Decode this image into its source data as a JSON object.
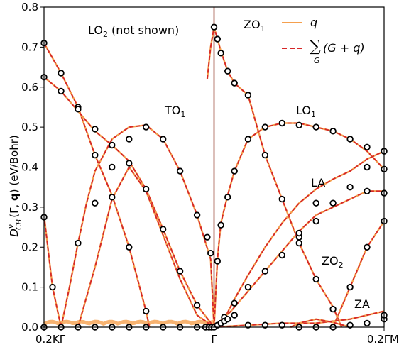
{
  "chart_data": {
    "type": "line",
    "ylabel_parts": {
      "main": "D",
      "sup": "ν",
      "sub": "CB",
      "rest_a": "(Γ, ",
      "rest_b": "q",
      "rest_c": ") (eV/Bohr)"
    },
    "ylim": [
      0.0,
      0.8
    ],
    "yticks": [
      "0.0",
      "0.1",
      "0.2",
      "0.3",
      "0.4",
      "0.5",
      "0.6",
      "0.7",
      "0.8"
    ],
    "xticks": [
      "0.2ΚΓ",
      "Γ",
      "0.2ΓΜ"
    ],
    "xlim": [
      -0.2,
      0.2
    ],
    "legend": {
      "placement": "top-right",
      "q_label": "q",
      "sum_label": "(G + q)",
      "sum_symbol": "∑",
      "sum_sub": "G"
    },
    "colors": {
      "q": "#f5a04e",
      "sum": "#d62728",
      "marker_edge": "#000000",
      "gamma_line": "#8b2a1a"
    },
    "annotations": {
      "lo2": {
        "main": "LO",
        "sub": "2",
        "rest": " (not shown)"
      },
      "zo1": {
        "main": "ZO",
        "sub": "1"
      },
      "to1": {
        "main": "TO",
        "sub": "1"
      },
      "lo1": {
        "main": "LO",
        "sub": "1"
      },
      "la": "LA",
      "zo2": {
        "main": "ZO",
        "sub": "2"
      },
      "za": "ZA"
    },
    "series": [
      {
        "key": "TO1_left",
        "points": [
          [
            -0.2,
            0.28
          ],
          [
            -0.19,
            0.1
          ],
          [
            -0.18,
            0.0
          ]
        ]
      },
      {
        "key": "TO1_arc",
        "points": [
          [
            -0.18,
            0.0
          ],
          [
            -0.17,
            0.1
          ],
          [
            -0.16,
            0.21
          ],
          [
            -0.15,
            0.31
          ],
          [
            -0.14,
            0.39
          ],
          [
            -0.12,
            0.47
          ],
          [
            -0.1,
            0.5
          ],
          [
            -0.08,
            0.505
          ],
          [
            -0.06,
            0.47
          ],
          [
            -0.04,
            0.39
          ],
          [
            -0.02,
            0.28
          ],
          [
            -0.004,
            0.17
          ],
          [
            0.0,
            0.0
          ]
        ]
      },
      {
        "key": "LO1_left",
        "points": [
          [
            -0.2,
            0.71
          ],
          [
            -0.18,
            0.635
          ],
          [
            -0.16,
            0.55
          ],
          [
            -0.14,
            0.43
          ],
          [
            -0.12,
            0.33
          ],
          [
            -0.1,
            0.2
          ],
          [
            -0.08,
            0.04
          ],
          [
            -0.076,
            0.0
          ]
        ]
      },
      {
        "key": "upper_left",
        "points": [
          [
            -0.2,
            0.625
          ],
          [
            -0.18,
            0.59
          ],
          [
            -0.16,
            0.54
          ],
          [
            -0.14,
            0.49
          ],
          [
            -0.12,
            0.455
          ],
          [
            -0.1,
            0.415
          ],
          [
            -0.08,
            0.345
          ],
          [
            -0.06,
            0.245
          ],
          [
            -0.04,
            0.14
          ],
          [
            -0.02,
            0.055
          ],
          [
            0.0,
            0.0
          ]
        ]
      },
      {
        "key": "mid_left",
        "points": [
          [
            -0.16,
            0.0
          ],
          [
            -0.14,
            0.15
          ],
          [
            -0.12,
            0.32
          ],
          [
            -0.1,
            0.4
          ],
          [
            -0.08,
            0.34
          ],
          [
            -0.06,
            0.23
          ],
          [
            -0.04,
            0.12
          ],
          [
            -0.02,
            0.03
          ],
          [
            0.0,
            0.0
          ]
        ]
      },
      {
        "key": "ZO1",
        "points": [
          [
            -0.008,
            0.62
          ],
          [
            -0.004,
            0.7
          ],
          [
            0.0,
            0.75
          ],
          [
            0.004,
            0.72
          ],
          [
            0.008,
            0.69
          ],
          [
            0.016,
            0.64
          ],
          [
            0.024,
            0.61
          ],
          [
            0.04,
            0.58
          ],
          [
            0.06,
            0.43
          ],
          [
            0.08,
            0.32
          ],
          [
            0.1,
            0.21
          ],
          [
            0.12,
            0.12
          ],
          [
            0.14,
            0.05
          ],
          [
            0.15,
            0.0
          ]
        ]
      },
      {
        "key": "LO1_right",
        "points": [
          [
            0.0,
            0.0
          ],
          [
            0.004,
            0.17
          ],
          [
            0.008,
            0.26
          ],
          [
            0.016,
            0.33
          ],
          [
            0.024,
            0.39
          ],
          [
            0.04,
            0.47
          ],
          [
            0.06,
            0.5
          ],
          [
            0.08,
            0.51
          ],
          [
            0.1,
            0.51
          ],
          [
            0.12,
            0.5
          ],
          [
            0.14,
            0.49
          ],
          [
            0.16,
            0.47
          ],
          [
            0.18,
            0.44
          ],
          [
            0.2,
            0.395
          ]
        ]
      },
      {
        "key": "LA",
        "points": [
          [
            0.0,
            0.0
          ],
          [
            0.012,
            0.02
          ],
          [
            0.024,
            0.07
          ],
          [
            0.04,
            0.13
          ],
          [
            0.06,
            0.2
          ],
          [
            0.08,
            0.26
          ],
          [
            0.1,
            0.31
          ],
          [
            0.12,
            0.345
          ],
          [
            0.14,
            0.37
          ],
          [
            0.16,
            0.39
          ],
          [
            0.18,
            0.42
          ],
          [
            0.2,
            0.44
          ]
        ]
      },
      {
        "key": "ZO2",
        "points": [
          [
            0.14,
            0.0
          ],
          [
            0.16,
            0.1
          ],
          [
            0.18,
            0.2
          ],
          [
            0.2,
            0.265
          ]
        ]
      },
      {
        "key": "TA",
        "points": [
          [
            0.0,
            0.0
          ],
          [
            0.02,
            0.04
          ],
          [
            0.04,
            0.09
          ],
          [
            0.06,
            0.14
          ],
          [
            0.08,
            0.19
          ],
          [
            0.1,
            0.24
          ],
          [
            0.12,
            0.28
          ],
          [
            0.14,
            0.3
          ],
          [
            0.16,
            0.32
          ],
          [
            0.18,
            0.34
          ],
          [
            0.2,
            0.34
          ]
        ]
      },
      {
        "key": "ZA",
        "points": [
          [
            0.0,
            0.0
          ],
          [
            0.04,
            0.005
          ],
          [
            0.08,
            0.01
          ],
          [
            0.12,
            0.01
          ],
          [
            0.16,
            0.02
          ],
          [
            0.18,
            0.03
          ],
          [
            0.2,
            0.04
          ]
        ]
      },
      {
        "key": "ZA_valley",
        "points": [
          [
            0.09,
            0.0
          ],
          [
            0.1,
            0.01
          ],
          [
            0.12,
            0.02
          ],
          [
            0.14,
            0.012
          ],
          [
            0.16,
            0.0
          ]
        ]
      }
    ],
    "markers": [
      [
        -0.2,
        0.71
      ],
      [
        -0.18,
        0.635
      ],
      [
        -0.16,
        0.55
      ],
      [
        -0.14,
        0.43
      ],
      [
        -0.12,
        0.325
      ],
      [
        -0.1,
        0.2
      ],
      [
        -0.08,
        0.04
      ],
      [
        -0.2,
        0.625
      ],
      [
        -0.18,
        0.59
      ],
      [
        -0.16,
        0.545
      ],
      [
        -0.14,
        0.495
      ],
      [
        -0.12,
        0.455
      ],
      [
        -0.1,
        0.41
      ],
      [
        -0.08,
        0.345
      ],
      [
        -0.06,
        0.245
      ],
      [
        -0.04,
        0.14
      ],
      [
        -0.02,
        0.055
      ],
      [
        -0.2,
        0.275
      ],
      [
        -0.19,
        0.1
      ],
      [
        -0.16,
        0.21
      ],
      [
        -0.14,
        0.31
      ],
      [
        -0.12,
        0.4
      ],
      [
        -0.1,
        0.47
      ],
      [
        -0.08,
        0.5
      ],
      [
        -0.06,
        0.47
      ],
      [
        -0.04,
        0.39
      ],
      [
        -0.02,
        0.28
      ],
      [
        -0.004,
        0.185
      ],
      [
        -0.008,
        0.225
      ],
      [
        -0.2,
        0.0
      ],
      [
        -0.18,
        0.0
      ],
      [
        -0.16,
        0.0
      ],
      [
        -0.14,
        0.0
      ],
      [
        -0.12,
        0.0
      ],
      [
        -0.1,
        0.0
      ],
      [
        -0.08,
        0.0
      ],
      [
        -0.06,
        0.0
      ],
      [
        -0.04,
        0.0
      ],
      [
        -0.02,
        0.0
      ],
      [
        -0.01,
        0.0
      ],
      [
        -0.006,
        0.0
      ],
      [
        -0.003,
        0.0
      ],
      [
        0.0,
        0.0
      ],
      [
        0.0,
        0.75
      ],
      [
        0.004,
        0.72
      ],
      [
        0.008,
        0.685
      ],
      [
        0.016,
        0.64
      ],
      [
        0.024,
        0.61
      ],
      [
        0.04,
        0.58
      ],
      [
        0.06,
        0.43
      ],
      [
        0.08,
        0.32
      ],
      [
        0.1,
        0.21
      ],
      [
        0.12,
        0.12
      ],
      [
        0.14,
        0.045
      ],
      [
        0.004,
        0.165
      ],
      [
        0.008,
        0.255
      ],
      [
        0.016,
        0.325
      ],
      [
        0.024,
        0.39
      ],
      [
        0.04,
        0.47
      ],
      [
        0.06,
        0.5
      ],
      [
        0.08,
        0.51
      ],
      [
        0.1,
        0.505
      ],
      [
        0.12,
        0.5
      ],
      [
        0.14,
        0.49
      ],
      [
        0.16,
        0.47
      ],
      [
        0.18,
        0.45
      ],
      [
        0.2,
        0.44
      ],
      [
        0.2,
        0.395
      ],
      [
        0.012,
        0.025
      ],
      [
        0.024,
        0.06
      ],
      [
        0.04,
        0.1
      ],
      [
        0.06,
        0.14
      ],
      [
        0.08,
        0.18
      ],
      [
        0.1,
        0.225
      ],
      [
        0.12,
        0.265
      ],
      [
        0.14,
        0.31
      ],
      [
        0.16,
        0.35
      ],
      [
        0.18,
        0.4
      ],
      [
        0.2,
        0.44
      ],
      [
        0.16,
        0.1
      ],
      [
        0.18,
        0.2
      ],
      [
        0.2,
        0.265
      ],
      [
        0.2,
        0.335
      ],
      [
        0.18,
        0.34
      ],
      [
        0.12,
        0.31
      ],
      [
        0.1,
        0.235
      ],
      [
        0.004,
        0.005
      ],
      [
        0.008,
        0.01
      ],
      [
        0.012,
        0.015
      ],
      [
        0.016,
        0.02
      ],
      [
        0.024,
        0.03
      ],
      [
        0.04,
        0.005
      ],
      [
        0.06,
        0.005
      ],
      [
        0.08,
        0.005
      ],
      [
        0.1,
        0.0
      ],
      [
        0.12,
        0.0
      ],
      [
        0.14,
        0.0
      ],
      [
        0.16,
        0.005
      ],
      [
        0.18,
        0.01
      ],
      [
        0.2,
        0.02
      ],
      [
        0.2,
        0.03
      ]
    ]
  }
}
